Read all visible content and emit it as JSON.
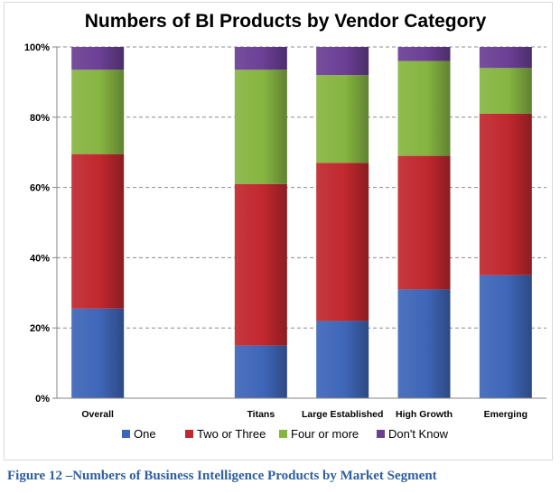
{
  "caption": "Figure 12 –Numbers of Business Intelligence Products by Market Segment",
  "chart_data": {
    "type": "bar",
    "stacked": true,
    "title": "Numbers of BI Products by Vendor Category",
    "xlabel": "",
    "ylabel": "",
    "categories": [
      "Overall",
      "",
      "Titans",
      "Large Established",
      "High Growth",
      "Emerging"
    ],
    "ylim": [
      0,
      100
    ],
    "yticks": [
      "0%",
      "20%",
      "40%",
      "60%",
      "80%",
      "100%"
    ],
    "grid": true,
    "legend_position": "bottom",
    "series": [
      {
        "name": "One",
        "color": "#3e66b8",
        "values": [
          25.5,
          null,
          15,
          22,
          31,
          35
        ]
      },
      {
        "name": "Two or Three",
        "color": "#c0282e",
        "values": [
          44,
          null,
          46,
          45,
          38,
          46
        ]
      },
      {
        "name": "Four or more",
        "color": "#86b541",
        "values": [
          24,
          null,
          32.5,
          25,
          27,
          13
        ]
      },
      {
        "name": "Don't Know",
        "color": "#6b3f95",
        "values": [
          6.5,
          null,
          6.5,
          8,
          4,
          6
        ]
      }
    ]
  }
}
